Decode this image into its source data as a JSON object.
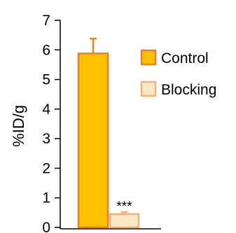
{
  "chart_data": {
    "type": "bar",
    "categories": [
      "Control",
      "Blocking"
    ],
    "values": [
      5.88,
      0.45
    ],
    "errors": [
      0.5,
      0.07
    ],
    "ylabel": "%ID/g",
    "ylim": [
      0,
      7
    ],
    "yticks": [
      "0",
      "1",
      "2",
      "3",
      "4",
      "5",
      "6",
      "7"
    ],
    "legend": [
      "Control",
      "Blocking"
    ],
    "legend_position": "right",
    "annotation": "***",
    "colors": {
      "control_fill": "#FFC000",
      "control_stroke": "#E8822A",
      "blocking_fill": "#FFE9C4",
      "blocking_stroke": "#F3B27A",
      "error_bar": "#E8822A",
      "axis": "#000000"
    }
  }
}
